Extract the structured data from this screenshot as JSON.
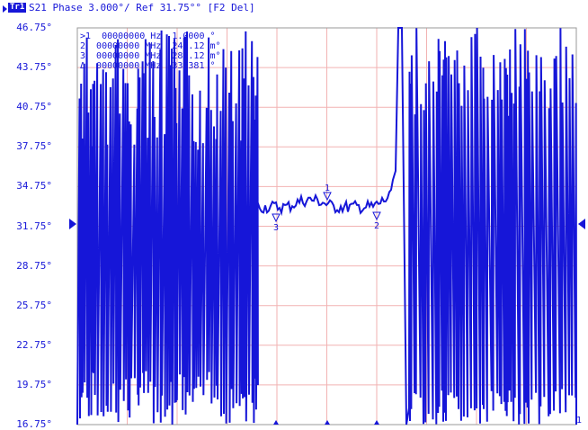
{
  "header": {
    "channel_badge": "Tr1",
    "trace_text": "S21 Phase 3.000°/ Ref 31.75°° [F2 Del]"
  },
  "y_axis": {
    "labels": [
      "46.75°",
      "43.75°",
      "40.75°",
      "37.75°",
      "34.75°",
      "31.75°",
      "28.75°",
      "25.75°",
      "22.75°",
      "19.75°",
      "16.75°"
    ],
    "ref_level": "31.75°"
  },
  "markers_readout": [
    {
      "id": ">1",
      "freq": "00000000",
      "unit": "Hz",
      "value": "1.0000 °"
    },
    {
      "id": "2",
      "freq": "00000000",
      "unit": "MHz",
      "value": "249.12 m°"
    },
    {
      "id": "3",
      "freq": "00000000",
      "unit": "MHz",
      "value": "287.12 m°"
    },
    {
      "id": "Δ",
      "freq": "00000000",
      "unit": "MHz",
      "value": "33.381 °"
    }
  ],
  "marker_labels": [
    "1",
    "2",
    "3"
  ],
  "end_label": "1",
  "colors": {
    "trace": "#1616d8",
    "grid": "#f2b2b2",
    "frame": "#9a9a9a"
  }
}
